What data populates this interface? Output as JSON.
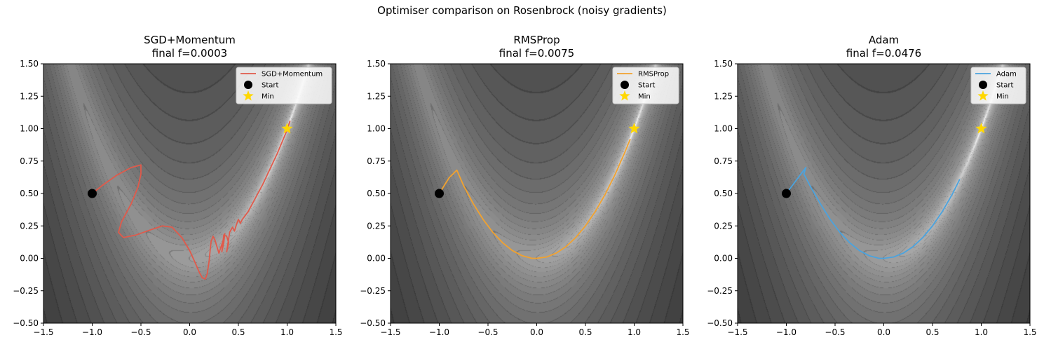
{
  "suptitle": "Optimiser comparison on Rosenbrock (noisy gradients)",
  "colors": {
    "sgd": "#e05a4b",
    "rmsprop": "#f2a22e",
    "adam": "#4aa3df",
    "start": "#000000",
    "min": "#ffd700",
    "background_dark": "#3a3a3a",
    "valley_light": "#ffffff"
  },
  "chart_data": [
    {
      "type": "line",
      "title": "SGD+Momentum",
      "subtitle": "final f=0.0003",
      "xlim": [
        -1.5,
        1.5
      ],
      "ylim": [
        -0.5,
        1.5
      ],
      "xticks": [
        "−1.5",
        "−1.0",
        "−0.5",
        "0.0",
        "0.5",
        "1.0",
        "1.5"
      ],
      "yticks": [
        "−0.50",
        "−0.25",
        "0.00",
        "0.25",
        "0.50",
        "0.75",
        "1.00",
        "1.25",
        "1.50"
      ],
      "legend": [
        "SGD+Momentum",
        "Start",
        "Min"
      ],
      "legend_position": "top-right",
      "series": [
        {
          "name": "SGD+Momentum",
          "color": "#e05a4b",
          "x": [
            -1.0,
            -0.9,
            -0.75,
            -0.6,
            -0.5,
            -0.5,
            -0.53,
            -0.6,
            -0.7,
            -0.73,
            -0.68,
            -0.55,
            -0.4,
            -0.28,
            -0.18,
            -0.08,
            0.0,
            0.06,
            0.1,
            0.13,
            0.16,
            0.18,
            0.2,
            0.21,
            0.22,
            0.24,
            0.26,
            0.3,
            0.34,
            0.36,
            0.35,
            0.33,
            0.35,
            0.38,
            0.4,
            0.38,
            0.41,
            0.44,
            0.46,
            0.48,
            0.5,
            0.52,
            0.54,
            0.56,
            0.6,
            0.65,
            0.7,
            0.75,
            0.8,
            0.85,
            0.9,
            0.95,
            1.0,
            1.03
          ],
          "y": [
            0.5,
            0.56,
            0.64,
            0.7,
            0.72,
            0.65,
            0.55,
            0.42,
            0.28,
            0.2,
            0.16,
            0.18,
            0.22,
            0.25,
            0.24,
            0.16,
            0.06,
            -0.04,
            -0.11,
            -0.15,
            -0.16,
            -0.12,
            -0.02,
            0.06,
            0.13,
            0.17,
            0.14,
            0.04,
            0.13,
            0.19,
            0.12,
            0.05,
            0.18,
            0.17,
            0.12,
            0.05,
            0.2,
            0.24,
            0.21,
            0.26,
            0.3,
            0.27,
            0.3,
            0.32,
            0.36,
            0.43,
            0.5,
            0.57,
            0.65,
            0.73,
            0.81,
            0.9,
            0.99,
            1.06
          ]
        }
      ],
      "start": [
        -1.0,
        0.5
      ],
      "min": [
        1.0,
        1.0
      ]
    },
    {
      "type": "line",
      "title": "RMSProp",
      "subtitle": "final f=0.0075",
      "xlim": [
        -1.5,
        1.5
      ],
      "ylim": [
        -0.5,
        1.5
      ],
      "xticks": [
        "−1.5",
        "−1.0",
        "−0.5",
        "0.0",
        "0.5",
        "1.0",
        "1.5"
      ],
      "yticks": [
        "−0.50",
        "−0.25",
        "0.00",
        "0.25",
        "0.50",
        "0.75",
        "1.00",
        "1.25",
        "1.50"
      ],
      "legend": [
        "RMSProp",
        "Start",
        "Min"
      ],
      "legend_position": "top-right",
      "series": [
        {
          "name": "RMSProp",
          "color": "#f2a22e",
          "x": [
            -1.0,
            -0.9,
            -0.82,
            -0.75,
            -0.65,
            -0.55,
            -0.45,
            -0.35,
            -0.25,
            -0.15,
            -0.05,
            0.0,
            0.1,
            0.2,
            0.3,
            0.4,
            0.5,
            0.6,
            0.7,
            0.8,
            0.9,
            0.96
          ],
          "y": [
            0.5,
            0.62,
            0.68,
            0.56,
            0.42,
            0.3,
            0.2,
            0.12,
            0.06,
            0.02,
            0.0,
            0.0,
            0.01,
            0.04,
            0.09,
            0.16,
            0.25,
            0.36,
            0.49,
            0.64,
            0.81,
            0.92
          ]
        }
      ],
      "start": [
        -1.0,
        0.5
      ],
      "min": [
        1.0,
        1.0
      ]
    },
    {
      "type": "line",
      "title": "Adam",
      "subtitle": "final f=0.0476",
      "xlim": [
        -1.5,
        1.5
      ],
      "ylim": [
        -0.5,
        1.5
      ],
      "xticks": [
        "−1.5",
        "−1.0",
        "−0.5",
        "0.0",
        "0.5",
        "1.0",
        "1.5"
      ],
      "yticks": [
        "−0.50",
        "−0.25",
        "0.00",
        "0.25",
        "0.50",
        "0.75",
        "1.00",
        "1.25",
        "1.50"
      ],
      "legend": [
        "Adam",
        "Start",
        "Min"
      ],
      "legend_position": "top-right",
      "series": [
        {
          "name": "Adam",
          "color": "#4aa3df",
          "x": [
            -1.0,
            -0.9,
            -0.8,
            -0.82,
            -0.75,
            -0.65,
            -0.55,
            -0.45,
            -0.35,
            -0.25,
            -0.15,
            -0.05,
            0.0,
            0.1,
            0.2,
            0.3,
            0.4,
            0.5,
            0.6,
            0.7,
            0.78
          ],
          "y": [
            0.5,
            0.6,
            0.7,
            0.65,
            0.55,
            0.42,
            0.3,
            0.2,
            0.12,
            0.06,
            0.02,
            0.0,
            0.0,
            0.01,
            0.04,
            0.09,
            0.16,
            0.25,
            0.36,
            0.49,
            0.61
          ]
        }
      ],
      "start": [
        -1.0,
        0.5
      ],
      "min": [
        1.0,
        1.0
      ]
    }
  ]
}
